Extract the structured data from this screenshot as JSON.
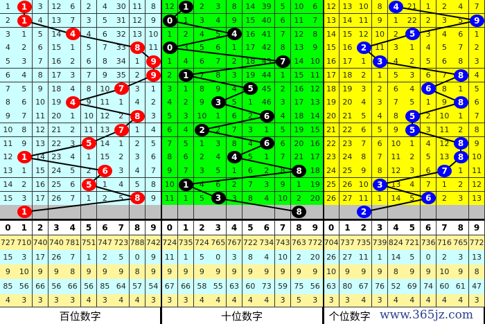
{
  "colors": {
    "hundreds_bg": "#ccffff",
    "tens_bg": "#00ff00",
    "units_bg": "#ffff00",
    "next_row_bg": "#c0c0c0",
    "stat_yellow": "#fff59d",
    "stat_cyan": "#ccffff",
    "hundreds_ball": "#ff0000",
    "tens_ball": "#000000",
    "units_ball": "#0000ff"
  },
  "digits": [
    "0",
    "1",
    "2",
    "3",
    "4",
    "5",
    "6",
    "7",
    "8",
    "9"
  ],
  "panels": [
    {
      "key": "hundreds",
      "label": "百位数字",
      "rows": [
        [
          1,
          1,
          3,
          12,
          6,
          2,
          4,
          30,
          11,
          8
        ],
        [
          2,
          1,
          4,
          13,
          7,
          3,
          5,
          31,
          12,
          9
        ],
        [
          3,
          1,
          5,
          14,
          4,
          4,
          6,
          32,
          13,
          10
        ],
        [
          4,
          2,
          6,
          15,
          1,
          5,
          7,
          33,
          8,
          11
        ],
        [
          5,
          3,
          7,
          16,
          2,
          6,
          8,
          34,
          1,
          9
        ],
        [
          6,
          4,
          8,
          17,
          3,
          7,
          9,
          35,
          2,
          9
        ],
        [
          7,
          5,
          9,
          18,
          4,
          8,
          10,
          7,
          3,
          1
        ],
        [
          8,
          6,
          10,
          19,
          4,
          9,
          11,
          1,
          4,
          2
        ],
        [
          9,
          7,
          11,
          20,
          1,
          10,
          12,
          2,
          8,
          3
        ],
        [
          10,
          8,
          12,
          21,
          2,
          11,
          13,
          7,
          1,
          4
        ],
        [
          11,
          9,
          13,
          22,
          3,
          5,
          14,
          1,
          2,
          5
        ],
        [
          12,
          1,
          14,
          23,
          4,
          1,
          15,
          2,
          3,
          6
        ],
        [
          13,
          1,
          15,
          24,
          5,
          2,
          6,
          3,
          4,
          7
        ],
        [
          14,
          2,
          16,
          25,
          6,
          5,
          1,
          4,
          5,
          8
        ],
        [
          15,
          3,
          17,
          26,
          7,
          1,
          2,
          5,
          8,
          9
        ]
      ],
      "hits": [
        1,
        1,
        4,
        8,
        9,
        9,
        7,
        4,
        8,
        7,
        5,
        1,
        6,
        5,
        8
      ],
      "next_hit": 1,
      "stats": [
        [
          "727",
          "710",
          "740",
          "740",
          "781",
          "751",
          "747",
          "723",
          "788",
          "742"
        ],
        [
          "15",
          "3",
          "17",
          "26",
          "7",
          "1",
          "2",
          "5",
          "0",
          "9"
        ],
        [
          "9",
          "10",
          "9",
          "9",
          "8",
          "9",
          "9",
          "9",
          "8",
          "9"
        ],
        [
          "85",
          "56",
          "66",
          "56",
          "66",
          "56",
          "85",
          "64",
          "57",
          "54"
        ],
        [
          "4",
          "3",
          "3",
          "3",
          "3",
          "4",
          "3",
          "4",
          "4",
          "3"
        ]
      ]
    },
    {
      "key": "tens",
      "label": "十位数字",
      "rows": [
        [
          12,
          1,
          2,
          3,
          8,
          14,
          39,
          5,
          10,
          6
        ],
        [
          0,
          1,
          3,
          4,
          9,
          15,
          40,
          6,
          11,
          7
        ],
        [
          1,
          2,
          4,
          5,
          4,
          16,
          41,
          7,
          12,
          8
        ],
        [
          0,
          3,
          5,
          6,
          1,
          17,
          42,
          8,
          13,
          9
        ],
        [
          1,
          4,
          6,
          7,
          2,
          18,
          43,
          7,
          14,
          10
        ],
        [
          2,
          1,
          7,
          8,
          3,
          19,
          44,
          1,
          15,
          11
        ],
        [
          3,
          1,
          8,
          9,
          4,
          5,
          45,
          2,
          16,
          12
        ],
        [
          4,
          2,
          9,
          3,
          5,
          1,
          46,
          3,
          17,
          13
        ],
        [
          5,
          3,
          10,
          1,
          6,
          2,
          6,
          4,
          18,
          14
        ],
        [
          6,
          4,
          2,
          2,
          7,
          3,
          1,
          5,
          19,
          15
        ],
        [
          7,
          5,
          1,
          3,
          8,
          4,
          6,
          6,
          20,
          16
        ],
        [
          8,
          6,
          2,
          4,
          4,
          5,
          1,
          7,
          21,
          17
        ],
        [
          9,
          7,
          3,
          5,
          1,
          6,
          2,
          8,
          8,
          18
        ],
        [
          10,
          1,
          4,
          6,
          2,
          7,
          3,
          9,
          1,
          19
        ],
        [
          11,
          1,
          5,
          3,
          3,
          8,
          4,
          10,
          2,
          20
        ]
      ],
      "hits": [
        1,
        0,
        4,
        0,
        7,
        1,
        5,
        3,
        6,
        2,
        6,
        4,
        8,
        1,
        3
      ],
      "next_hit": 8,
      "stats": [
        [
          "724",
          "735",
          "724",
          "765",
          "767",
          "722",
          "734",
          "743",
          "763",
          "772"
        ],
        [
          "11",
          "1",
          "5",
          "0",
          "3",
          "8",
          "4",
          "10",
          "2",
          "20"
        ],
        [
          "9",
          "9",
          "9",
          "9",
          "9",
          "9",
          "9",
          "9",
          "9",
          "9"
        ],
        [
          "67",
          "66",
          "58",
          "55",
          "63",
          "60",
          "73",
          "59",
          "75",
          "56"
        ],
        [
          "3",
          "3",
          "4",
          "4",
          "4",
          "4",
          "4",
          "3",
          "5",
          "3"
        ]
      ]
    },
    {
      "key": "units",
      "label": "个位数字",
      "rows": [
        [
          12,
          13,
          10,
          8,
          4,
          21,
          1,
          2,
          4,
          7
        ],
        [
          13,
          14,
          11,
          9,
          1,
          22,
          2,
          3,
          5,
          9
        ],
        [
          14,
          15,
          12,
          10,
          2,
          5,
          3,
          4,
          6,
          1
        ],
        [
          15,
          16,
          2,
          11,
          3,
          1,
          4,
          5,
          7,
          2
        ],
        [
          16,
          17,
          1,
          3,
          4,
          2,
          5,
          6,
          8,
          3
        ],
        [
          17,
          18,
          2,
          1,
          5,
          3,
          6,
          7,
          8,
          4
        ],
        [
          18,
          19,
          3,
          2,
          6,
          4,
          6,
          8,
          1,
          5
        ],
        [
          19,
          20,
          4,
          3,
          7,
          5,
          1,
          9,
          8,
          6
        ],
        [
          20,
          21,
          5,
          4,
          8,
          5,
          2,
          10,
          1,
          7
        ],
        [
          21,
          22,
          6,
          5,
          9,
          5,
          3,
          11,
          2,
          8
        ],
        [
          22,
          23,
          7,
          6,
          10,
          1,
          4,
          12,
          8,
          9
        ],
        [
          23,
          24,
          8,
          7,
          11,
          2,
          5,
          13,
          8,
          10
        ],
        [
          24,
          25,
          9,
          8,
          12,
          3,
          6,
          7,
          1,
          11
        ],
        [
          25,
          26,
          10,
          3,
          13,
          4,
          7,
          1,
          2,
          12
        ],
        [
          26,
          27,
          11,
          1,
          14,
          5,
          6,
          2,
          3,
          13
        ]
      ],
      "hits": [
        4,
        9,
        5,
        2,
        3,
        8,
        6,
        8,
        5,
        5,
        8,
        8,
        7,
        3,
        6
      ],
      "next_hit": 2,
      "stats": [
        [
          "704",
          "737",
          "735",
          "739",
          "824",
          "721",
          "736",
          "716",
          "765",
          "772"
        ],
        [
          "26",
          "27",
          "11",
          "1",
          "14",
          "5",
          "0",
          "2",
          "3",
          "13"
        ],
        [
          "10",
          "9",
          "9",
          "9",
          "8",
          "9",
          "9",
          "10",
          "9",
          "8"
        ],
        [
          "63",
          "80",
          "67",
          "76",
          "52",
          "69",
          "74",
          "60",
          "61",
          "47"
        ],
        [
          "3",
          "3",
          "4",
          "3",
          "4",
          "4",
          "4",
          "4",
          "4",
          "3"
        ]
      ]
    }
  ],
  "watermark": "www.365jz.com"
}
